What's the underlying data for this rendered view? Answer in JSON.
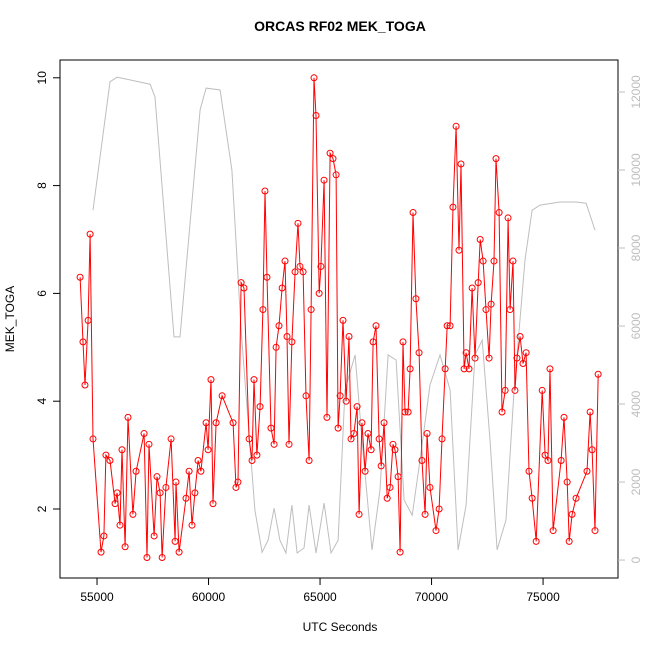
{
  "chart_data": {
    "type": "line",
    "title": "ORCAS RF02 MEK_TOGA",
    "x_label": "UTC Seconds",
    "y_label": "MEK_TOGA",
    "xlim": [
      53340,
      78360
    ],
    "xticks": [
      55000,
      60000,
      65000,
      70000,
      75000
    ],
    "ylim": [
      0.72,
      10.33
    ],
    "yticks": [
      2,
      4,
      6,
      8,
      10
    ],
    "y2lim": [
      -460,
      12820
    ],
    "y2ticks": [
      0,
      2000,
      4000,
      6000,
      8000,
      10000,
      12000
    ],
    "series": [
      {
        "color": "#ff0000",
        "markers": true,
        "x": [
          54240,
          54370,
          54460,
          54600,
          54690,
          54820,
          55180,
          55310,
          55400,
          55580,
          55810,
          55900,
          56030,
          56120,
          56260,
          56390,
          56610,
          56750,
          57110,
          57240,
          57330,
          57560,
          57690,
          57830,
          57920,
          58090,
          58320,
          58500,
          58540,
          58680,
          58990,
          59130,
          59260,
          59390,
          59530,
          59660,
          59890,
          59980,
          60110,
          60200,
          60340,
          60610,
          61100,
          61230,
          61320,
          61460,
          61590,
          61820,
          61950,
          62040,
          62170,
          62310,
          62440,
          62530,
          62620,
          62800,
          62940,
          63030,
          63160,
          63300,
          63430,
          63520,
          63610,
          63740,
          63880,
          64010,
          64100,
          64240,
          64370,
          64510,
          64600,
          64730,
          64820,
          64960,
          65040,
          65180,
          65310,
          65450,
          65580,
          65720,
          65810,
          65900,
          66030,
          66170,
          66300,
          66390,
          66520,
          66660,
          66750,
          66880,
          67020,
          67150,
          67290,
          67380,
          67510,
          67650,
          67740,
          67870,
          68010,
          68140,
          68270,
          68360,
          68500,
          68590,
          68720,
          68810,
          68950,
          69040,
          69170,
          69300,
          69440,
          69570,
          69710,
          69800,
          69930,
          70200,
          70340,
          70470,
          70610,
          70700,
          70830,
          70960,
          71100,
          71230,
          71320,
          71460,
          71550,
          71680,
          71820,
          71950,
          72090,
          72180,
          72310,
          72440,
          72580,
          72670,
          72800,
          72890,
          73030,
          73160,
          73300,
          73430,
          73520,
          73650,
          73740,
          73830,
          73970,
          74100,
          74240,
          74370,
          74510,
          74690,
          74960,
          75090,
          75220,
          75310,
          75450,
          75810,
          75940,
          76080,
          76170,
          76300,
          76480,
          76970,
          77110,
          77200,
          77330,
          77470
        ],
        "values": [
          6.3,
          5.1,
          4.3,
          5.5,
          7.1,
          3.3,
          1.2,
          1.5,
          3.0,
          2.9,
          2.1,
          2.3,
          1.7,
          3.1,
          1.3,
          3.7,
          1.9,
          2.7,
          3.4,
          1.1,
          3.2,
          1.5,
          2.6,
          2.3,
          1.1,
          2.4,
          3.3,
          1.4,
          2.5,
          1.2,
          2.2,
          2.7,
          1.7,
          2.3,
          2.9,
          2.7,
          3.6,
          3.1,
          4.4,
          2.1,
          3.6,
          4.1,
          3.6,
          2.4,
          2.5,
          6.2,
          6.1,
          3.3,
          2.9,
          4.4,
          3.0,
          3.9,
          5.7,
          7.9,
          6.3,
          3.5,
          3.2,
          5.0,
          5.4,
          6.1,
          6.6,
          5.2,
          3.2,
          5.1,
          6.4,
          7.3,
          6.5,
          6.4,
          4.1,
          2.9,
          5.7,
          10.0,
          9.3,
          6.0,
          6.5,
          8.1,
          3.7,
          8.6,
          8.5,
          8.2,
          3.5,
          4.1,
          5.5,
          4.0,
          5.2,
          3.3,
          3.4,
          3.9,
          1.9,
          3.6,
          2.7,
          3.4,
          3.1,
          5.1,
          5.4,
          3.3,
          2.8,
          3.6,
          2.2,
          2.4,
          3.2,
          3.1,
          2.6,
          1.2,
          5.1,
          3.8,
          3.8,
          4.6,
          7.5,
          5.9,
          4.9,
          2.9,
          1.9,
          3.4,
          2.4,
          1.6,
          2.0,
          3.3,
          4.6,
          5.4,
          5.4,
          7.6,
          9.1,
          6.8,
          8.4,
          4.6,
          4.9,
          4.6,
          6.1,
          4.8,
          6.2,
          7.0,
          6.6,
          5.7,
          4.8,
          5.8,
          6.6,
          8.5,
          7.5,
          3.8,
          4.2,
          7.4,
          5.7,
          6.6,
          4.2,
          4.8,
          5.2,
          4.7,
          4.9,
          2.7,
          2.2,
          1.4,
          4.2,
          3.0,
          2.9,
          4.6,
          1.6,
          2.9,
          3.7,
          2.5,
          1.4,
          1.9,
          2.2,
          2.7,
          3.8,
          3.1,
          1.6,
          4.5
        ]
      },
      {
        "color": "#bebebe",
        "axis": "y2",
        "markers": false,
        "x": [
          54820,
          55580,
          55900,
          57380,
          57600,
          58450,
          58720,
          59620,
          59890,
          60520,
          61050,
          61460,
          62080,
          62400,
          62670,
          62940,
          63200,
          63470,
          63740,
          63970,
          64280,
          64510,
          64820,
          65180,
          65490,
          65810,
          66120,
          66570,
          66880,
          67330,
          67690,
          68050,
          68410,
          68770,
          69130,
          69480,
          69930,
          70380,
          70830,
          71190,
          71550,
          71950,
          72270,
          72620,
          72940,
          73340,
          73700,
          74190,
          74510,
          74870,
          75760,
          76480,
          76930,
          77330
        ],
        "values": [
          8970,
          12260,
          12380,
          12200,
          11870,
          5720,
          5720,
          11540,
          12100,
          12050,
          10000,
          5900,
          1280,
          200,
          510,
          1330,
          510,
          180,
          1410,
          180,
          310,
          1410,
          180,
          1460,
          180,
          510,
          4360,
          5260,
          3080,
          260,
          1800,
          5260,
          5130,
          1540,
          1150,
          2560,
          4490,
          5260,
          4360,
          260,
          1410,
          5260,
          5640,
          3080,
          260,
          1030,
          4360,
          7690,
          8970,
          9100,
          9180,
          9180,
          9150,
          8460
        ]
      }
    ]
  }
}
